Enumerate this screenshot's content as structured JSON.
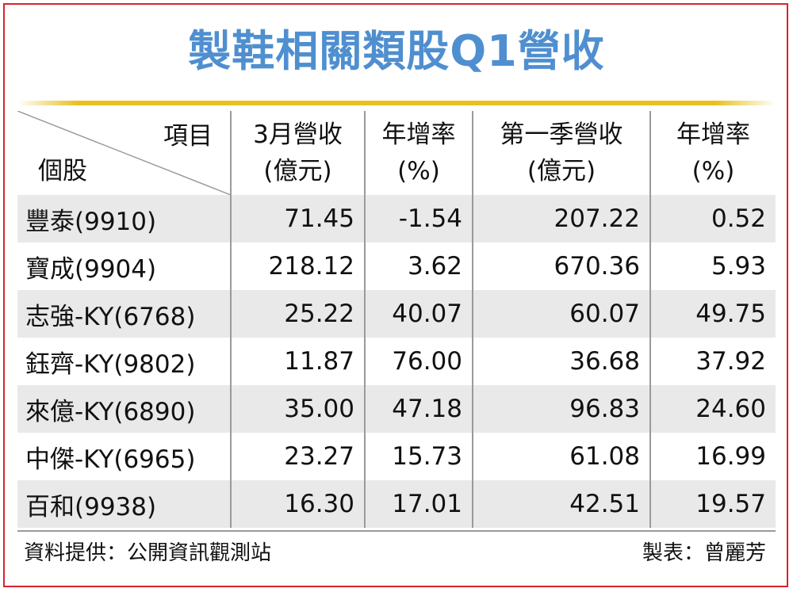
{
  "title": "製鞋相關類股Q1營收",
  "table": {
    "corner_top": "項目",
    "corner_bottom": "個股",
    "headers": [
      {
        "line1": "3月營收",
        "line2": "(億元)"
      },
      {
        "line1": "年增率",
        "line2": "(%)"
      },
      {
        "line1": "第一季營收",
        "line2": "(億元)"
      },
      {
        "line1": "年增率",
        "line2": "(%)"
      }
    ],
    "rows": [
      {
        "name": "豐泰(9910)",
        "values": [
          "71.45",
          "-1.54",
          "207.22",
          "0.52"
        ]
      },
      {
        "name": "寶成(9904)",
        "values": [
          "218.12",
          "3.62",
          "670.36",
          "5.93"
        ]
      },
      {
        "name": "志強-KY(6768)",
        "values": [
          "25.22",
          "40.07",
          "60.07",
          "49.75"
        ]
      },
      {
        "name": "鈺齊-KY(9802)",
        "values": [
          "11.87",
          "76.00",
          "36.68",
          "37.92"
        ]
      },
      {
        "name": "來億-KY(6890)",
        "values": [
          "35.00",
          "47.18",
          "96.83",
          "24.60"
        ]
      },
      {
        "name": "中傑-KY(6965)",
        "values": [
          "23.27",
          "15.73",
          "61.08",
          "16.99"
        ]
      },
      {
        "name": "百和(9938)",
        "values": [
          "16.30",
          "17.01",
          "42.51",
          "19.57"
        ]
      }
    ]
  },
  "footer": {
    "source": "資料提供：公開資訊觀測站",
    "author": "製表：曾麗芳"
  },
  "colors": {
    "title": "#4f8fd0",
    "border": "#d9232e",
    "rule": "#e8c020",
    "shade": "#e9e9ea"
  }
}
